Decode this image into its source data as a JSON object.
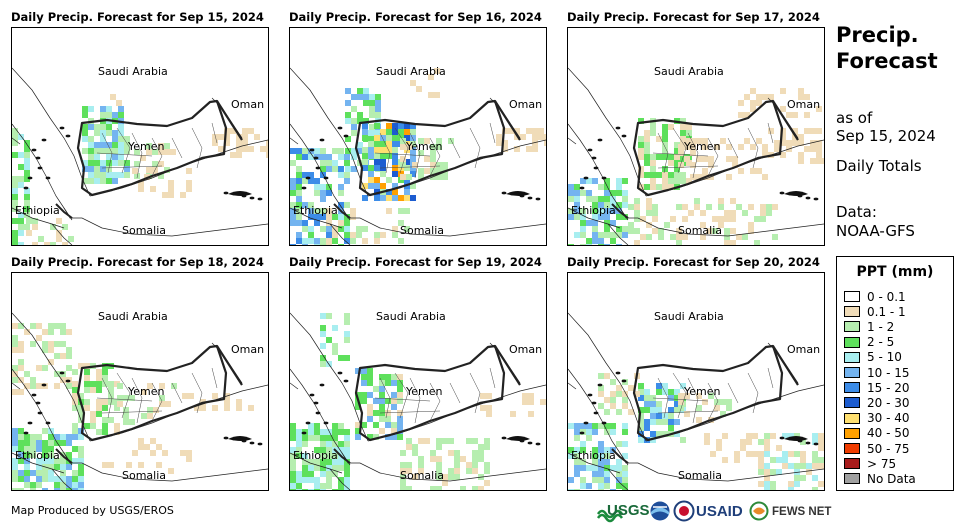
{
  "panels": [
    {
      "title": "Daily Precip. Forecast for Sep 15, 2024"
    },
    {
      "title": "Daily Precip. Forecast for Sep 16, 2024"
    },
    {
      "title": "Daily Precip. Forecast for Sep 17, 2024"
    },
    {
      "title": "Daily Precip. Forecast for Sep 18, 2024"
    },
    {
      "title": "Daily Precip. Forecast for Sep 19, 2024"
    },
    {
      "title": "Daily Precip. Forecast for Sep 20, 2024"
    }
  ],
  "map_labels": {
    "saudi": "Saudi Arabia",
    "oman": "Oman",
    "yemen": "Yemen",
    "ethiopia": "Ethiopia",
    "somalia": "Somalia"
  },
  "side": {
    "title_line1": "Precip.",
    "title_line2": "Forecast",
    "asof_line1": "as of",
    "asof_line2": "Sep 15, 2024",
    "totals": "Daily Totals",
    "data_line1": "Data:",
    "data_line2": "NOAA-GFS"
  },
  "legend": {
    "title": "PPT (mm)",
    "items": [
      {
        "label": "0 - 0.1",
        "color": "#ffffff"
      },
      {
        "label": "0.1 - 1",
        "color": "#f0dcb8"
      },
      {
        "label": "1 - 2",
        "color": "#b6eeb0"
      },
      {
        "label": "2 - 5",
        "color": "#5ee05c"
      },
      {
        "label": "5 - 10",
        "color": "#a8eef0"
      },
      {
        "label": "10 - 15",
        "color": "#74b4f0"
      },
      {
        "label": "15 - 20",
        "color": "#3c8ce8"
      },
      {
        "label": "20 - 30",
        "color": "#1c5cd0"
      },
      {
        "label": "30 - 40",
        "color": "#ffe070"
      },
      {
        "label": "40 - 50",
        "color": "#ffa000"
      },
      {
        "label": "50 - 75",
        "color": "#f03c00"
      },
      {
        "label": "> 75",
        "color": "#a81c1c"
      },
      {
        "label": "No Data",
        "color": "#a0a0a0"
      }
    ]
  },
  "footer": {
    "credit": "Map Produced by USGS/EROS"
  },
  "logos": {
    "usgs": "USGS",
    "usaid": "USAID",
    "fews": "FEWS NET",
    "usgs_icon": "usgs-logo-icon",
    "noaa_icon": "noaa-logo-icon",
    "fews_icon": "fews-net-logo-icon"
  }
}
